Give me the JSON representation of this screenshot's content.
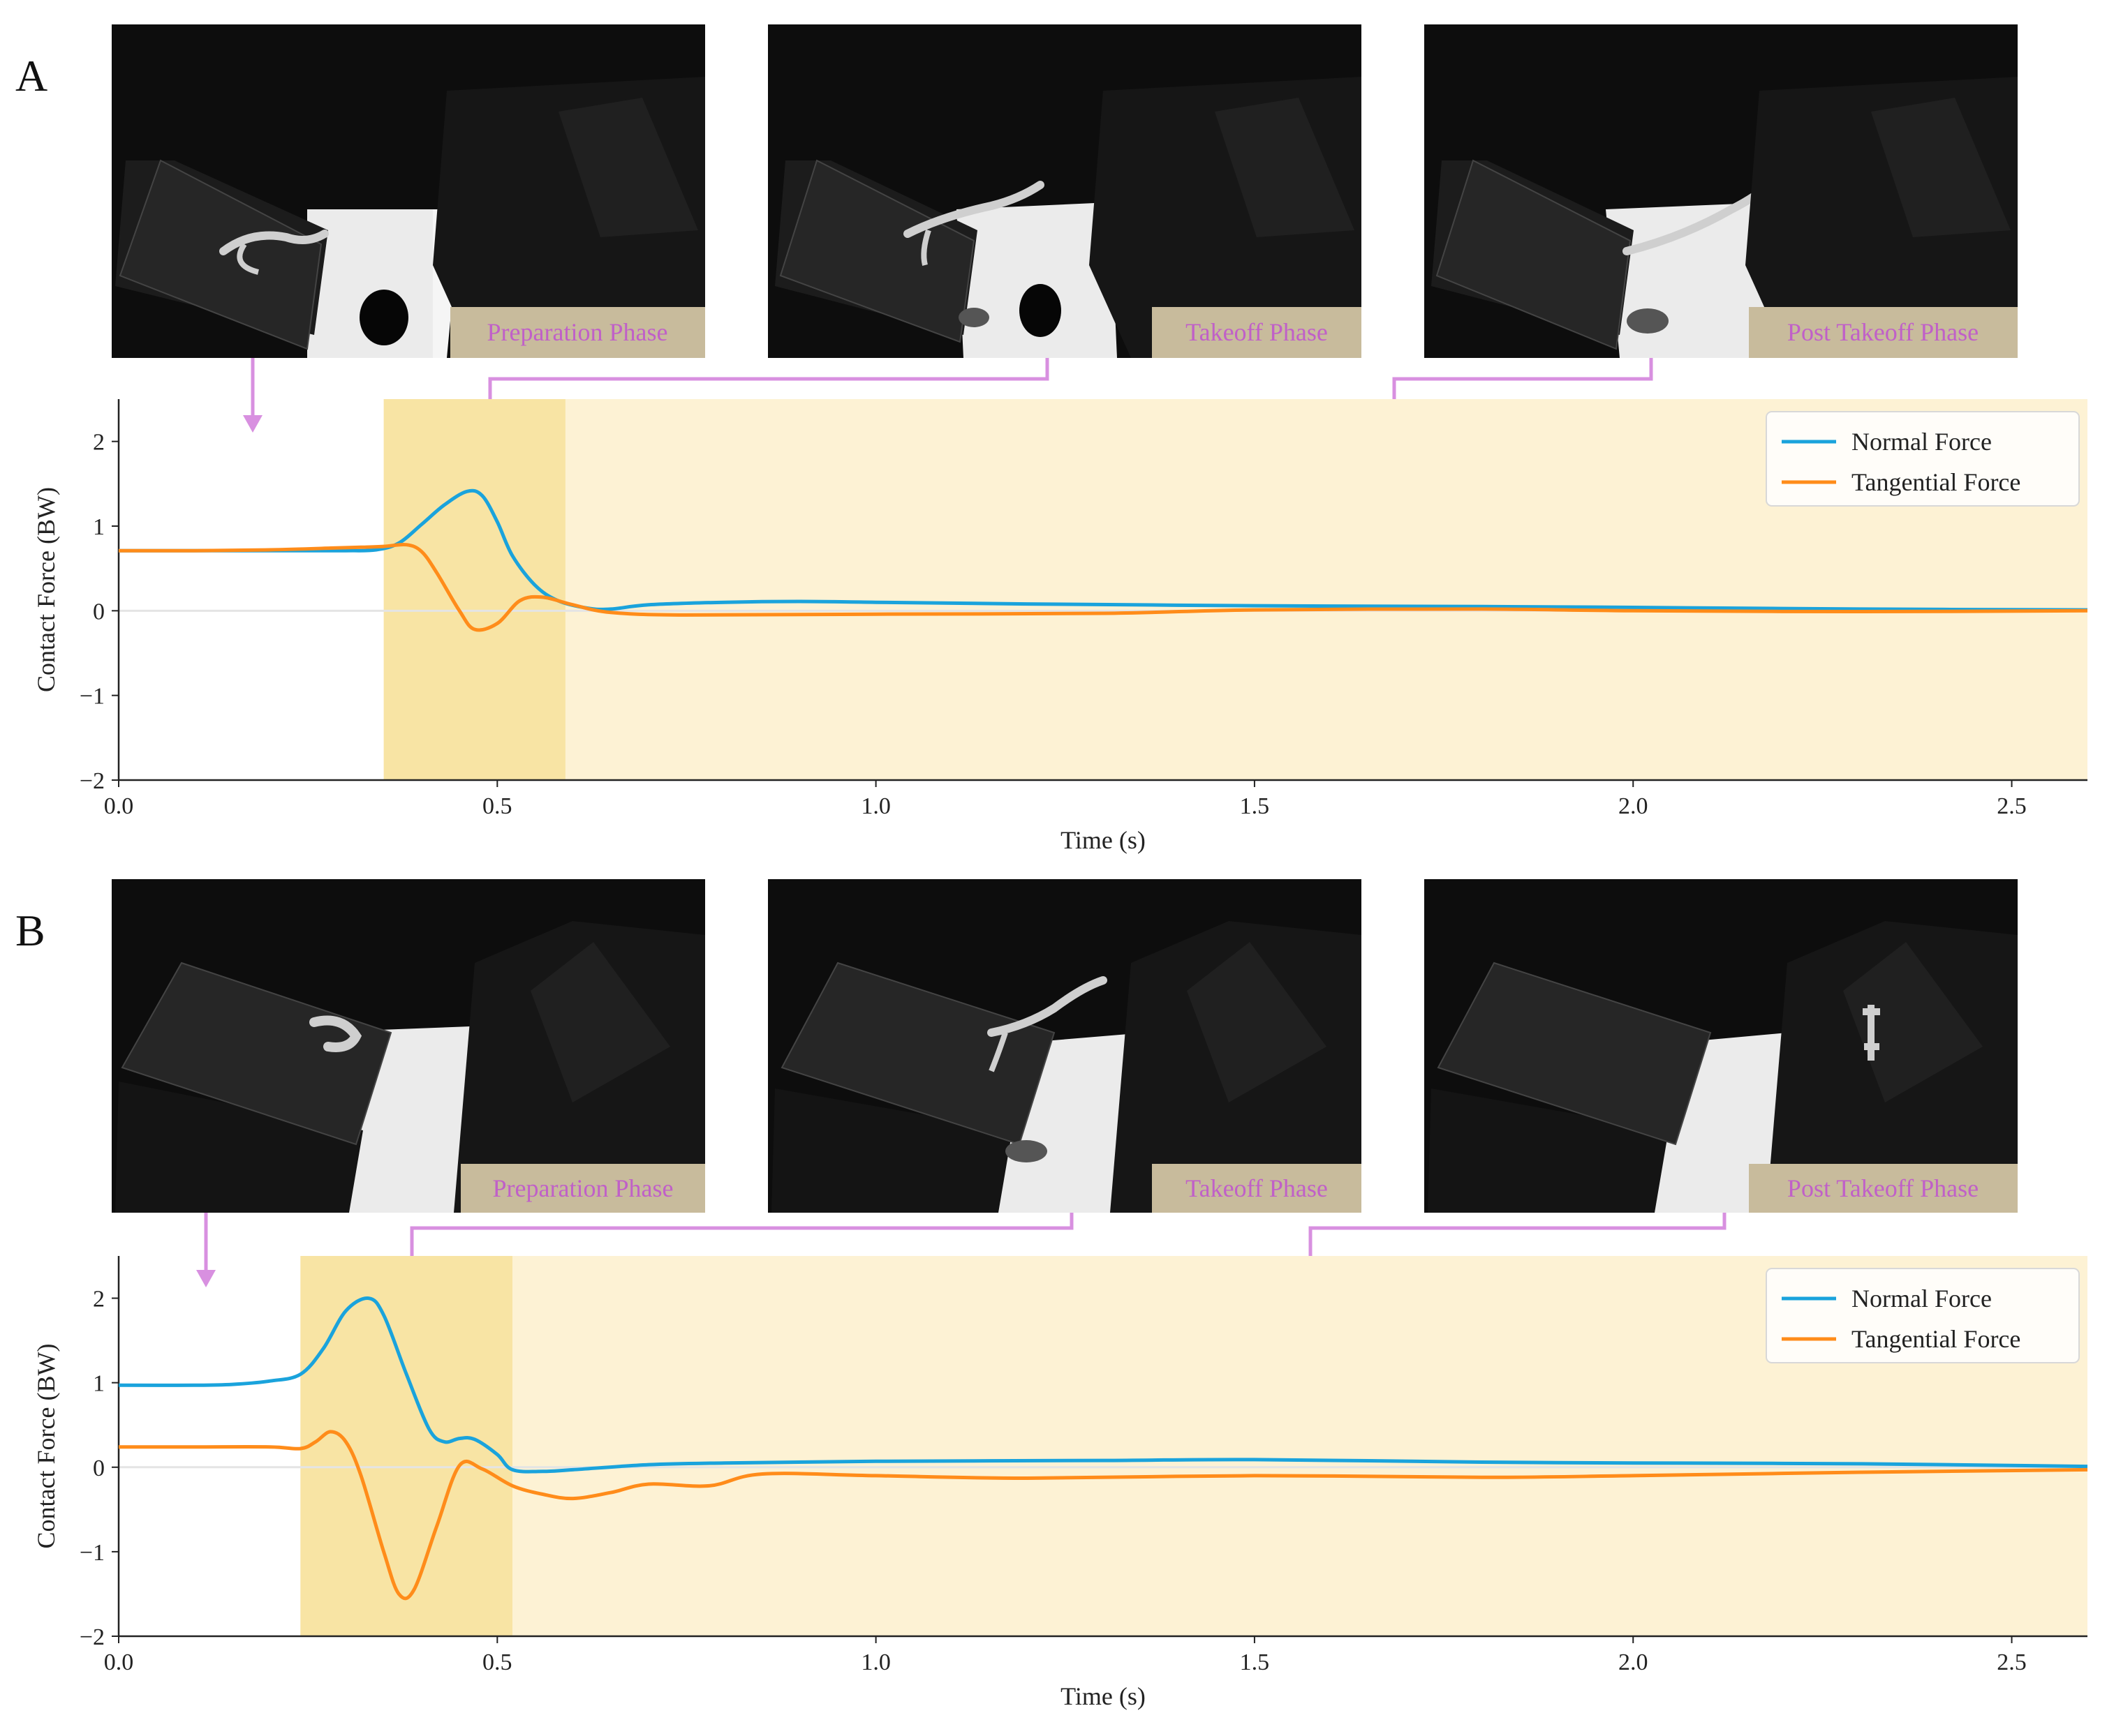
{
  "colors": {
    "normal": "#1aa3dc",
    "tangential": "#ff8c1a",
    "takeoff_shade": "#f8e4a4",
    "post_shade": "#fdf2d4",
    "arrow": "#d890e0",
    "phase_text": "#c060c8",
    "phase_box": "#c8bb9c"
  },
  "panels": [
    {
      "letter": "A",
      "phases": [
        "Preparation Phase",
        "Takeoff Phase",
        "Post Takeoff Phase"
      ]
    },
    {
      "letter": "B",
      "phases": [
        "Preparation Phase",
        "Takeoff Phase",
        "Post Takeoff Phase"
      ]
    }
  ],
  "chart_data": [
    {
      "type": "line",
      "title": "",
      "xlabel": "Time (s)",
      "ylabel": "Contact Force (BW)",
      "xlim": [
        0,
        2.6
      ],
      "ylim": [
        -2,
        2.5
      ],
      "xticks": [
        "0.0",
        "0.5",
        "1.0",
        "1.5",
        "2.0",
        "2.5"
      ],
      "yticks": [
        "2",
        "1",
        "0",
        "−1",
        "−2"
      ],
      "legend": "top-right",
      "phase_spans": {
        "takeoff": [
          0.35,
          0.59
        ],
        "post_takeoff": [
          0.59,
          2.6
        ]
      },
      "series": [
        {
          "name": "Normal Force",
          "x": [
            0,
            0.1,
            0.2,
            0.3,
            0.34,
            0.37,
            0.4,
            0.43,
            0.46,
            0.48,
            0.5,
            0.52,
            0.55,
            0.58,
            0.62,
            0.65,
            0.7,
            0.8,
            0.9,
            1.0,
            1.2,
            1.5,
            1.8,
            2.0,
            2.3,
            2.6
          ],
          "y": [
            0.71,
            0.71,
            0.71,
            0.71,
            0.72,
            0.8,
            1.02,
            1.25,
            1.41,
            1.36,
            1.05,
            0.65,
            0.3,
            0.12,
            0.03,
            0.02,
            0.07,
            0.1,
            0.11,
            0.1,
            0.08,
            0.06,
            0.05,
            0.04,
            0.02,
            0.01
          ]
        },
        {
          "name": "Tangential Force",
          "x": [
            0,
            0.1,
            0.2,
            0.28,
            0.32,
            0.35,
            0.38,
            0.4,
            0.42,
            0.45,
            0.47,
            0.5,
            0.53,
            0.56,
            0.6,
            0.65,
            0.75,
            1.0,
            1.3,
            1.5,
            1.8,
            2.0,
            2.3,
            2.6
          ],
          "y": [
            0.71,
            0.71,
            0.72,
            0.74,
            0.75,
            0.76,
            0.78,
            0.7,
            0.45,
            0.0,
            -0.22,
            -0.15,
            0.12,
            0.16,
            0.07,
            -0.02,
            -0.05,
            -0.04,
            -0.03,
            0.01,
            0.02,
            0.0,
            -0.01,
            0.0
          ]
        }
      ]
    },
    {
      "type": "line",
      "title": "",
      "xlabel": "Time (s)",
      "ylabel": "Contact Force (BW)",
      "xlim": [
        0,
        2.6
      ],
      "ylim": [
        -2,
        2.5
      ],
      "xticks": [
        "0.0",
        "0.5",
        "1.0",
        "1.5",
        "2.0",
        "2.5"
      ],
      "yticks": [
        "2",
        "1",
        "0",
        "−1",
        "−2"
      ],
      "legend": "top-right",
      "phase_spans": {
        "takeoff": [
          0.24,
          0.52
        ],
        "post_takeoff": [
          0.52,
          2.6
        ]
      },
      "series": [
        {
          "name": "Normal Force",
          "x": [
            0,
            0.1,
            0.15,
            0.2,
            0.24,
            0.27,
            0.3,
            0.33,
            0.35,
            0.38,
            0.41,
            0.43,
            0.45,
            0.47,
            0.5,
            0.52,
            0.56,
            0.6,
            0.7,
            0.8,
            1.0,
            1.3,
            1.5,
            1.8,
            2.0,
            2.3,
            2.6
          ],
          "y": [
            0.97,
            0.97,
            0.98,
            1.02,
            1.1,
            1.4,
            1.85,
            2.0,
            1.8,
            1.1,
            0.45,
            0.3,
            0.34,
            0.33,
            0.15,
            -0.03,
            -0.05,
            -0.03,
            0.03,
            0.05,
            0.07,
            0.08,
            0.09,
            0.06,
            0.05,
            0.04,
            0.01
          ]
        },
        {
          "name": "Tangential Force",
          "x": [
            0,
            0.1,
            0.2,
            0.24,
            0.26,
            0.28,
            0.3,
            0.32,
            0.35,
            0.37,
            0.39,
            0.42,
            0.45,
            0.48,
            0.52,
            0.56,
            0.6,
            0.65,
            0.7,
            0.78,
            0.85,
            1.0,
            1.2,
            1.5,
            1.8,
            2.0,
            2.3,
            2.6
          ],
          "y": [
            0.24,
            0.24,
            0.24,
            0.22,
            0.3,
            0.42,
            0.3,
            -0.1,
            -1.0,
            -1.5,
            -1.45,
            -0.7,
            0.02,
            -0.02,
            -0.22,
            -0.32,
            -0.37,
            -0.3,
            -0.2,
            -0.22,
            -0.08,
            -0.1,
            -0.13,
            -0.1,
            -0.12,
            -0.1,
            -0.06,
            -0.03
          ]
        }
      ]
    }
  ]
}
